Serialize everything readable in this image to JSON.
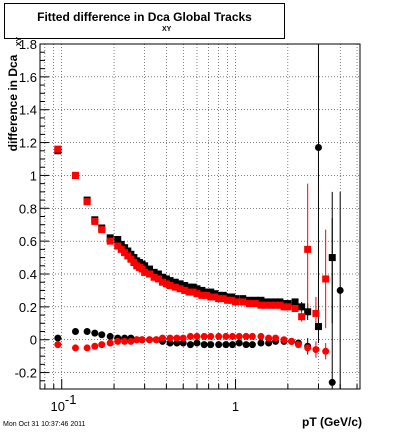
{
  "title": {
    "main": "Fitted difference in Dca   Global Tracks",
    "sub": "XY"
  },
  "axes": {
    "ylabel": "difference in Dca",
    "ylabel_sub": "XY",
    "xlabel": "pT (GeV/c)"
  },
  "datestamp": "Mon Oct 31 10:37:46 2011",
  "colors": {
    "black_series": "#000000",
    "red_series": "#ff0000",
    "grid": "#000000",
    "frame": "#000000"
  },
  "chart_data": {
    "type": "scatter",
    "title": "Fitted difference in Dca XY Global Tracks",
    "xlabel": "pT (GeV/c)",
    "ylabel": "difference in Dca XY",
    "xscale": "log",
    "xlim": [
      0.075,
      5.2
    ],
    "ylim": [
      -0.3,
      1.8
    ],
    "yticks": [
      -0.2,
      0,
      0.2,
      0.4,
      0.6,
      0.8,
      1,
      1.2,
      1.4,
      1.6,
      1.8
    ],
    "ytick_labels": [
      "-0.2",
      "0",
      "0.2",
      "0.4",
      "0.6",
      "0.8",
      "1",
      "1.2",
      "1.4",
      "1.6",
      "1.8"
    ],
    "xticks": [
      0.1,
      1
    ],
    "xtick_labels": [
      "10^-1",
      "1"
    ],
    "grid": true,
    "series": [
      {
        "marker": "square",
        "color": "#000000",
        "x": [
          0.095,
          0.12,
          0.14,
          0.155,
          0.17,
          0.19,
          0.21,
          0.22,
          0.23,
          0.24,
          0.25,
          0.26,
          0.27,
          0.28,
          0.29,
          0.3,
          0.32,
          0.34,
          0.36,
          0.38,
          0.4,
          0.42,
          0.45,
          0.48,
          0.51,
          0.54,
          0.57,
          0.6,
          0.64,
          0.68,
          0.72,
          0.76,
          0.8,
          0.85,
          0.9,
          0.95,
          1.0,
          1.1,
          1.2,
          1.3,
          1.4,
          1.5,
          1.6,
          1.7,
          1.8,
          1.9,
          2.0,
          2.2,
          2.4,
          2.6,
          3.0,
          3.6
        ],
        "y": [
          1.15,
          1.0,
          0.85,
          0.73,
          0.68,
          0.62,
          0.61,
          0.58,
          0.56,
          0.54,
          0.52,
          0.5,
          0.48,
          0.47,
          0.46,
          0.45,
          0.43,
          0.41,
          0.4,
          0.38,
          0.37,
          0.36,
          0.35,
          0.34,
          0.33,
          0.32,
          0.32,
          0.31,
          0.3,
          0.29,
          0.29,
          0.28,
          0.27,
          0.27,
          0.26,
          0.26,
          0.25,
          0.25,
          0.24,
          0.24,
          0.24,
          0.23,
          0.23,
          0.23,
          0.23,
          0.22,
          0.22,
          0.23,
          0.2,
          0.17,
          0.08,
          0.5
        ],
        "yerr": [
          0.01,
          0.01,
          0.01,
          0.01,
          0.01,
          0.01,
          0.01,
          0.01,
          0.01,
          0.01,
          0.01,
          0.01,
          0.01,
          0.01,
          0.01,
          0.01,
          0.01,
          0.01,
          0.01,
          0.01,
          0.01,
          0.01,
          0.01,
          0.01,
          0.01,
          0.01,
          0.01,
          0.01,
          0.01,
          0.01,
          0.01,
          0.01,
          0.01,
          0.01,
          0.01,
          0.01,
          0.01,
          0.01,
          0.01,
          0.01,
          0.01,
          0.01,
          0.01,
          0.01,
          0.01,
          0.01,
          0.02,
          0.02,
          0.03,
          0.05,
          0.1,
          0.4
        ]
      },
      {
        "marker": "square",
        "color": "#ff0000",
        "x": [
          0.095,
          0.12,
          0.14,
          0.155,
          0.17,
          0.19,
          0.21,
          0.22,
          0.23,
          0.24,
          0.25,
          0.26,
          0.27,
          0.28,
          0.29,
          0.3,
          0.32,
          0.34,
          0.36,
          0.38,
          0.4,
          0.42,
          0.45,
          0.48,
          0.51,
          0.54,
          0.57,
          0.6,
          0.64,
          0.68,
          0.72,
          0.76,
          0.8,
          0.85,
          0.9,
          0.95,
          1.0,
          1.1,
          1.2,
          1.3,
          1.4,
          1.5,
          1.6,
          1.7,
          1.8,
          1.9,
          2.0,
          2.2,
          2.4,
          2.6,
          2.9,
          3.3
        ],
        "y": [
          1.16,
          1.0,
          0.84,
          0.72,
          0.67,
          0.6,
          0.57,
          0.55,
          0.53,
          0.51,
          0.49,
          0.47,
          0.45,
          0.44,
          0.43,
          0.41,
          0.4,
          0.38,
          0.37,
          0.35,
          0.34,
          0.33,
          0.32,
          0.31,
          0.3,
          0.29,
          0.29,
          0.28,
          0.27,
          0.27,
          0.26,
          0.26,
          0.25,
          0.25,
          0.24,
          0.24,
          0.23,
          0.23,
          0.22,
          0.22,
          0.21,
          0.21,
          0.21,
          0.21,
          0.21,
          0.2,
          0.2,
          0.19,
          0.14,
          0.55,
          0.16,
          0.37
        ],
        "yerr": [
          0.01,
          0.01,
          0.01,
          0.01,
          0.01,
          0.01,
          0.01,
          0.01,
          0.01,
          0.01,
          0.01,
          0.01,
          0.01,
          0.01,
          0.01,
          0.01,
          0.01,
          0.01,
          0.01,
          0.01,
          0.01,
          0.01,
          0.01,
          0.01,
          0.01,
          0.01,
          0.01,
          0.01,
          0.01,
          0.01,
          0.01,
          0.01,
          0.01,
          0.01,
          0.01,
          0.01,
          0.01,
          0.01,
          0.01,
          0.01,
          0.01,
          0.01,
          0.01,
          0.01,
          0.01,
          0.01,
          0.02,
          0.02,
          0.03,
          0.4,
          0.1,
          0.3
        ]
      },
      {
        "marker": "circle",
        "color": "#000000",
        "x": [
          0.095,
          0.12,
          0.14,
          0.155,
          0.17,
          0.19,
          0.21,
          0.23,
          0.25,
          0.27,
          0.29,
          0.32,
          0.35,
          0.38,
          0.42,
          0.46,
          0.5,
          0.55,
          0.6,
          0.66,
          0.72,
          0.8,
          0.88,
          0.96,
          1.05,
          1.15,
          1.25,
          1.4,
          1.55,
          1.7,
          1.9,
          2.1,
          2.3,
          2.6,
          3.0,
          3.6,
          4.0
        ],
        "y": [
          0.01,
          0.05,
          0.05,
          0.04,
          0.03,
          0.02,
          0.01,
          0.01,
          0.01,
          0.0,
          0.0,
          0.0,
          0.0,
          -0.01,
          -0.02,
          -0.02,
          -0.02,
          -0.03,
          -0.02,
          -0.03,
          -0.03,
          -0.03,
          -0.03,
          -0.03,
          -0.02,
          -0.03,
          -0.03,
          -0.02,
          -0.02,
          -0.01,
          -0.01,
          -0.01,
          -0.02,
          -0.04,
          1.17,
          -0.26,
          0.3
        ],
        "yerr": [
          0.01,
          0.01,
          0.01,
          0.01,
          0.01,
          0.01,
          0.01,
          0.01,
          0.01,
          0.01,
          0.01,
          0.01,
          0.01,
          0.01,
          0.01,
          0.01,
          0.01,
          0.01,
          0.01,
          0.01,
          0.01,
          0.01,
          0.01,
          0.01,
          0.01,
          0.01,
          0.01,
          0.01,
          0.01,
          0.01,
          0.02,
          0.02,
          0.02,
          0.05,
          1.0,
          1.0,
          0.6
        ]
      },
      {
        "marker": "circle",
        "color": "#ff0000",
        "x": [
          0.095,
          0.12,
          0.14,
          0.155,
          0.17,
          0.19,
          0.21,
          0.23,
          0.25,
          0.27,
          0.29,
          0.32,
          0.35,
          0.38,
          0.42,
          0.46,
          0.5,
          0.55,
          0.6,
          0.66,
          0.72,
          0.8,
          0.88,
          0.96,
          1.05,
          1.15,
          1.25,
          1.4,
          1.55,
          1.7,
          1.9,
          2.1,
          2.3,
          2.6,
          2.9,
          3.3
        ],
        "y": [
          -0.03,
          -0.05,
          -0.05,
          -0.04,
          -0.03,
          -0.02,
          -0.01,
          -0.01,
          -0.01,
          0.0,
          0.0,
          0.0,
          0.0,
          0.01,
          0.01,
          0.01,
          0.01,
          0.02,
          0.02,
          0.02,
          0.02,
          0.02,
          0.02,
          0.02,
          0.02,
          0.02,
          0.02,
          0.02,
          0.01,
          0.01,
          0.0,
          -0.01,
          -0.03,
          -0.05,
          -0.06,
          -0.07
        ],
        "yerr": [
          0.01,
          0.01,
          0.01,
          0.01,
          0.01,
          0.01,
          0.01,
          0.01,
          0.01,
          0.01,
          0.01,
          0.01,
          0.01,
          0.01,
          0.01,
          0.01,
          0.01,
          0.01,
          0.01,
          0.01,
          0.01,
          0.01,
          0.01,
          0.01,
          0.01,
          0.01,
          0.01,
          0.01,
          0.01,
          0.01,
          0.02,
          0.02,
          0.02,
          0.03,
          0.05,
          0.05
        ]
      }
    ]
  }
}
